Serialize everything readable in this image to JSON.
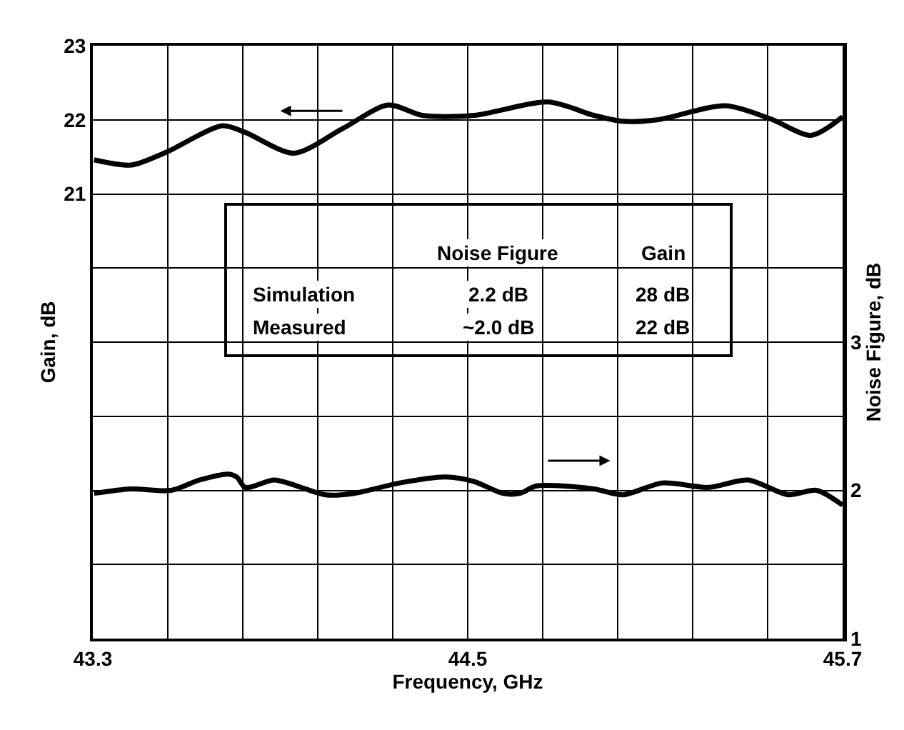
{
  "chart_data": {
    "type": "line",
    "xlabel": "Frequency, GHz",
    "ylabel": "Gain, dB",
    "y2label": "Noise Figure, dB",
    "xlim": [
      43.3,
      45.7
    ],
    "xticks": [
      43.3,
      {
        "value": 43.54,
        "label": null
      },
      {
        "value": 43.78,
        "label": null
      },
      {
        "value": 44.02,
        "label": null
      },
      {
        "value": 44.26,
        "label": null
      },
      44.5,
      {
        "value": 44.74,
        "label": null
      },
      {
        "value": 44.98,
        "label": null
      },
      {
        "value": 45.22,
        "label": null
      },
      {
        "value": 45.46,
        "label": null
      },
      45.7
    ],
    "ylim": [
      15,
      23
    ],
    "yticks": [
      21,
      22,
      23
    ],
    "y2lim": [
      1,
      5
    ],
    "y2ticks": [
      1,
      2,
      3
    ],
    "grid": true,
    "marker": "none",
    "line_style": "solid",
    "series": [
      {
        "color": "#000000",
        "x": [
          43.304,
          43.423,
          43.533,
          43.715,
          43.788,
          43.944,
          44.099,
          44.245,
          44.355,
          44.52,
          44.758,
          44.904,
          44.996,
          45.106,
          45.325,
          45.471,
          45.599,
          45.7
        ],
        "values": [
          21.46,
          21.39,
          21.56,
          21.92,
          21.83,
          21.55,
          21.88,
          22.2,
          22.06,
          22.06,
          22.24,
          22.06,
          21.98,
          22.0,
          22.19,
          22.01,
          21.79,
          22.04
        ]
      },
      {
        "color": "#000000",
        "axis": "y2",
        "x": [
          43.304,
          43.423,
          43.551,
          43.642,
          43.734,
          43.761,
          43.788,
          43.88,
          43.953,
          44.044,
          44.136,
          44.282,
          44.428,
          44.52,
          44.612,
          44.667,
          44.721,
          44.904,
          44.996,
          45.124,
          45.27,
          45.398,
          45.526,
          45.617,
          45.7
        ],
        "values": [
          1.98,
          2.01,
          2.0,
          2.07,
          2.11,
          2.09,
          2.02,
          2.07,
          2.03,
          1.97,
          1.98,
          2.05,
          2.09,
          2.06,
          1.98,
          1.98,
          2.03,
          2.01,
          1.97,
          2.05,
          2.02,
          2.07,
          1.97,
          2.0,
          1.9
        ]
      }
    ],
    "annotations": [
      "Noise Figure",
      "Gain",
      "Simulation",
      "2.2 dB",
      "28 dB",
      "Measured",
      "~2.0 dB",
      "22 dB"
    ]
  }
}
